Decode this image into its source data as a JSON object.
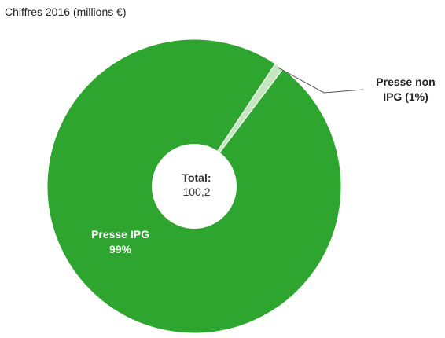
{
  "chart_data": {
    "type": "pie",
    "title": "Chiffres 2016 (millions €)",
    "slices": [
      {
        "label_lines": [
          "Presse IPG",
          "99%"
        ],
        "value": 99,
        "color": "#2ea52e"
      },
      {
        "label_lines": [
          "Presse non",
          "IPG (1%)"
        ],
        "value": 1,
        "color": "#c6e6c0"
      }
    ],
    "center": {
      "label": "Total:",
      "value": "100,2"
    }
  }
}
